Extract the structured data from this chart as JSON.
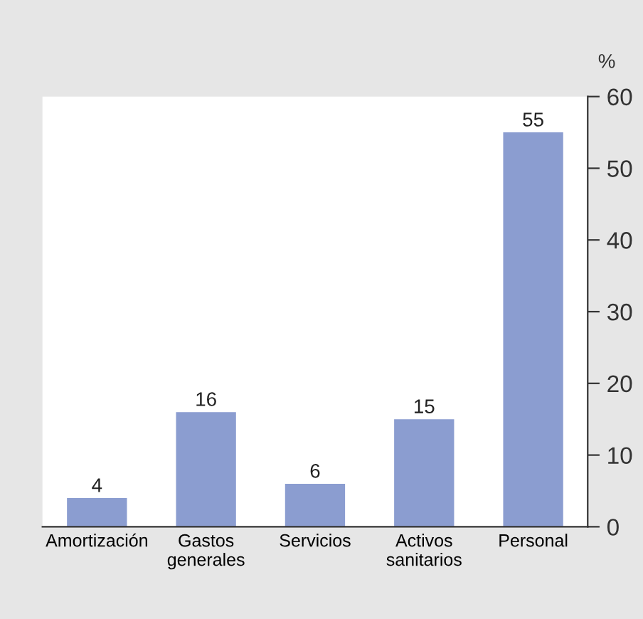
{
  "chart_data": {
    "type": "bar",
    "categories": [
      "Amortización",
      "Gastos\ngenerales",
      "Servicios",
      "Activos\nsanitarios",
      "Personal"
    ],
    "values": [
      4,
      16,
      6,
      15,
      55
    ],
    "color": "#8b9dd0",
    "ylabel": "%",
    "ylim": [
      0,
      60
    ],
    "yticks": [
      0,
      10,
      20,
      30,
      40,
      50,
      60
    ],
    "data_labels": true,
    "grid": false,
    "legend": false
  }
}
